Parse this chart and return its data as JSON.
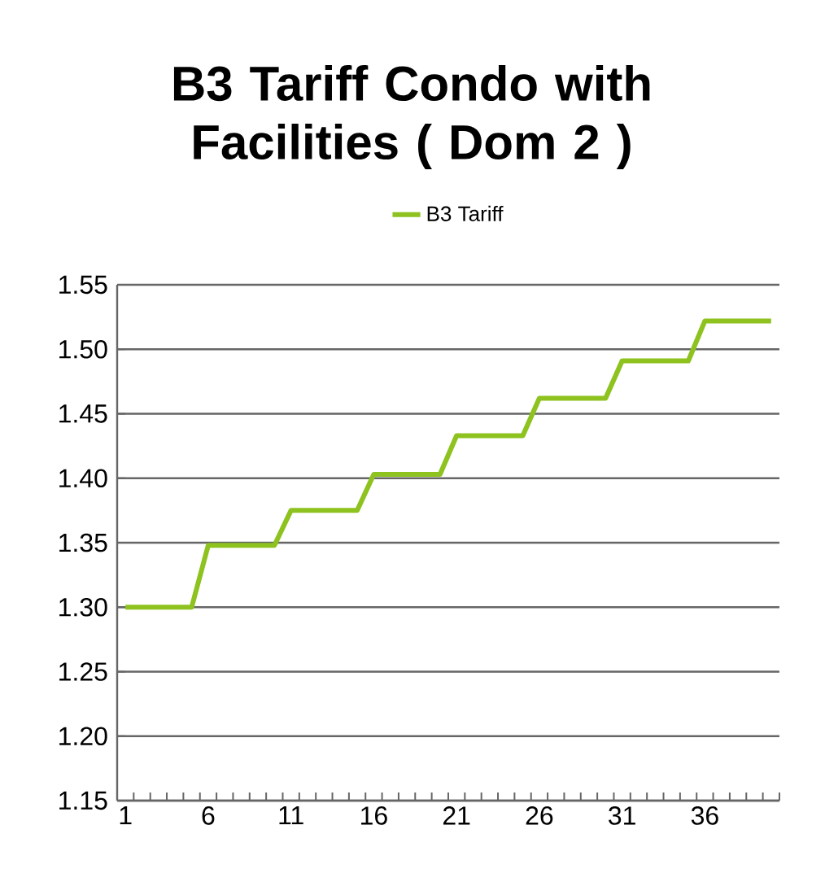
{
  "chart_data": {
    "type": "line",
    "title": "B3 Tariff Condo with Facilities ( Dom 2 )",
    "categories": [
      "1",
      null,
      null,
      null,
      null,
      "6",
      null,
      null,
      null,
      null,
      "11",
      null,
      null,
      null,
      null,
      "16",
      null,
      null,
      null,
      null,
      "21",
      null,
      null,
      null,
      null,
      "26",
      null,
      null,
      null,
      null,
      "31",
      null,
      null,
      null,
      null,
      "36",
      null,
      null,
      null,
      null
    ],
    "series": [
      {
        "name": "B3 Tariff",
        "color": "#8dc21f",
        "values": [
          1.3,
          1.3,
          1.3,
          1.3,
          1.3,
          1.348,
          1.348,
          1.348,
          1.348,
          1.348,
          1.375,
          1.375,
          1.375,
          1.375,
          1.375,
          1.403,
          1.403,
          1.403,
          1.403,
          1.403,
          1.433,
          1.433,
          1.433,
          1.433,
          1.433,
          1.462,
          1.462,
          1.462,
          1.462,
          1.462,
          1.491,
          1.491,
          1.491,
          1.491,
          1.491,
          1.522,
          1.522,
          1.522,
          1.522,
          1.522
        ]
      }
    ],
    "ylim": [
      1.15,
      1.55
    ],
    "yticks": [
      {
        "value": 1.15,
        "label": "1.15"
      },
      {
        "value": 1.2,
        "label": "1.20"
      },
      {
        "value": 1.25,
        "label": "1.25"
      },
      {
        "value": 1.3,
        "label": "1.30"
      },
      {
        "value": 1.35,
        "label": "1.35"
      },
      {
        "value": 1.4,
        "label": "1.40"
      },
      {
        "value": 1.45,
        "label": "1.45"
      },
      {
        "value": 1.5,
        "label": "1.50"
      },
      {
        "value": 1.55,
        "label": "1.55"
      }
    ],
    "grid": "y",
    "legend": "top",
    "marker": "none",
    "line_style": "solid"
  }
}
